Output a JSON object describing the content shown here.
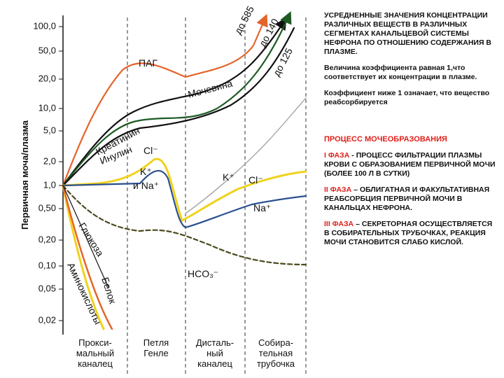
{
  "chart": {
    "y_axis_title": "Первичная моча/плазма",
    "y_ticks": [
      "100,0",
      "50,0",
      "20,0",
      "10,0",
      "5,0",
      "2,0",
      "1,0",
      "0,50",
      "0,20",
      "0,10",
      "0,05",
      "0,02"
    ],
    "segments": [
      [
        "Прокси-",
        "мальный",
        "каналец"
      ],
      [
        "Петля",
        "Генле"
      ],
      [
        "Дисталь-",
        "ный",
        "каналец"
      ],
      [
        "Собира-",
        "тельная",
        "трубочка"
      ]
    ],
    "curve_labels": {
      "pag": "ПАГ",
      "urea": "Мочевина",
      "creatinine": "Креатинин",
      "inulin": "Инулин",
      "cl_loop": "Cl⁻",
      "k_na_loop_1": "K⁺",
      "k_na_loop_2": "и Na⁺",
      "k_distal": "K⁺",
      "cl_distal": "Cl⁻",
      "na_distal": "Na⁺",
      "glucose": "Глюкоза",
      "amino_acids": "Аминокислоты",
      "protein": "Белок",
      "hco3": "HCO₃⁻",
      "to_585": "до 585",
      "to_140": "до 140",
      "to_125": "до 125"
    }
  },
  "text": {
    "intro": "УСРЕДНЕННЫЕ ЗНАЧЕНИЯ КОНЦЕНТРАЦИИ РАЗЛИЧНЫХ ВЕЩЕСТВ В РАЗЛИЧНЫХ СЕГМЕНТАХ КАНАЛЬЦЕВОЙ СИСТЕМЫ НЕФРОНА ПО ОТНОШЕНИЮ СОДЕРЖАНИЯ В ПЛАЗМЕ.",
    "coefficient_1": "Величина коэффициента равная 1,что соответствует их концентрации в плазме.",
    "coefficient_below": "Коэффициент ниже 1 означает, что вещество реабсорбируется",
    "process_title": "ПРОЦЕСС МОЧЕОБРАЗОВАНИЯ",
    "phases": [
      {
        "label": "I ФАЗА",
        "text": "- ПРОЦЕСС ФИЛЬТРАЦИИ ПЛАЗМЫ КРОВИ С ОБРАЗОВАНИЕМ ПЕРВИЧНОЙ МОЧИ (БОЛЕЕ 100 Л В СУТКИ)"
      },
      {
        "label": "II ФАЗА",
        "text": "– ОБЛИГАТНАЯ И ФАКУЛЬТАТИВНАЯ РЕАБСОРБЦИЯ ПЕРВИЧНОЙ МОЧИ В КАНАЛЬЦАХ НЕФРОНА."
      },
      {
        "label": "III ФАЗА",
        "text": "– СЕКРЕТОРНАЯ ОСУЩЕСТВЛЯЕТСЯ В СОБИРАТЕЛЬНЫХ ТРУБОЧКАХ, РЕАКЦИЯ МОЧИ СТАНОВИТСЯ СЛАБО КИСЛОЙ."
      }
    ]
  }
}
